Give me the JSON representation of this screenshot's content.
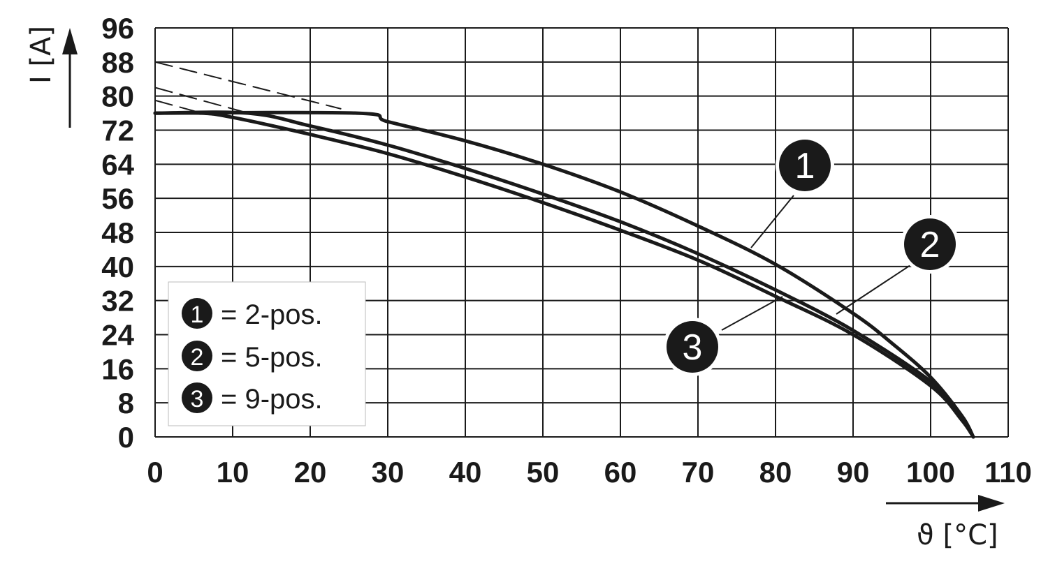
{
  "chart_data": {
    "type": "line",
    "xlabel": "ϑ [°C]",
    "ylabel": "I [A]",
    "xlim": [
      0,
      110
    ],
    "ylim": [
      0,
      96
    ],
    "x_ticks": [
      0,
      10,
      20,
      30,
      40,
      50,
      60,
      70,
      80,
      90,
      100,
      110
    ],
    "y_ticks": [
      0,
      8,
      16,
      24,
      32,
      40,
      48,
      56,
      64,
      72,
      80,
      88,
      96
    ],
    "grid": true,
    "legend_position": "bottom-left",
    "legend": [
      {
        "badge": "1",
        "text": "= 2-pos."
      },
      {
        "badge": "2",
        "text": "= 5-pos."
      },
      {
        "badge": "3",
        "text": "= 9-pos."
      }
    ],
    "series": [
      {
        "badge": "1",
        "x": [
          0,
          26,
          30,
          40,
          50,
          60,
          70,
          80,
          90,
          95,
          100,
          104,
          105.5
        ],
        "y": [
          76,
          76,
          74,
          69.5,
          64,
          57.5,
          49.5,
          40.5,
          29,
          22,
          14,
          5,
          0
        ],
        "extrapolated": {
          "x": [
            0,
            24
          ],
          "y": [
            88,
            77
          ]
        }
      },
      {
        "badge": "2",
        "x": [
          0,
          12,
          20,
          30,
          40,
          50,
          60,
          70,
          80,
          90,
          100,
          104,
          105.5
        ],
        "y": [
          76,
          76,
          73,
          68.5,
          63,
          57,
          50.5,
          43,
          34.5,
          25,
          13,
          5,
          0
        ],
        "extrapolated": {
          "x": [
            0,
            12
          ],
          "y": [
            82,
            76
          ]
        }
      },
      {
        "badge": "3",
        "x": [
          0,
          6,
          10,
          20,
          30,
          40,
          50,
          60,
          70,
          80,
          90,
          100,
          104,
          105.5
        ],
        "y": [
          76,
          76,
          75,
          71,
          66.5,
          61,
          55,
          48.5,
          41.5,
          33,
          24,
          12,
          4,
          0
        ],
        "extrapolated": {
          "x": [
            0,
            6
          ],
          "y": [
            79,
            76
          ]
        }
      }
    ]
  }
}
